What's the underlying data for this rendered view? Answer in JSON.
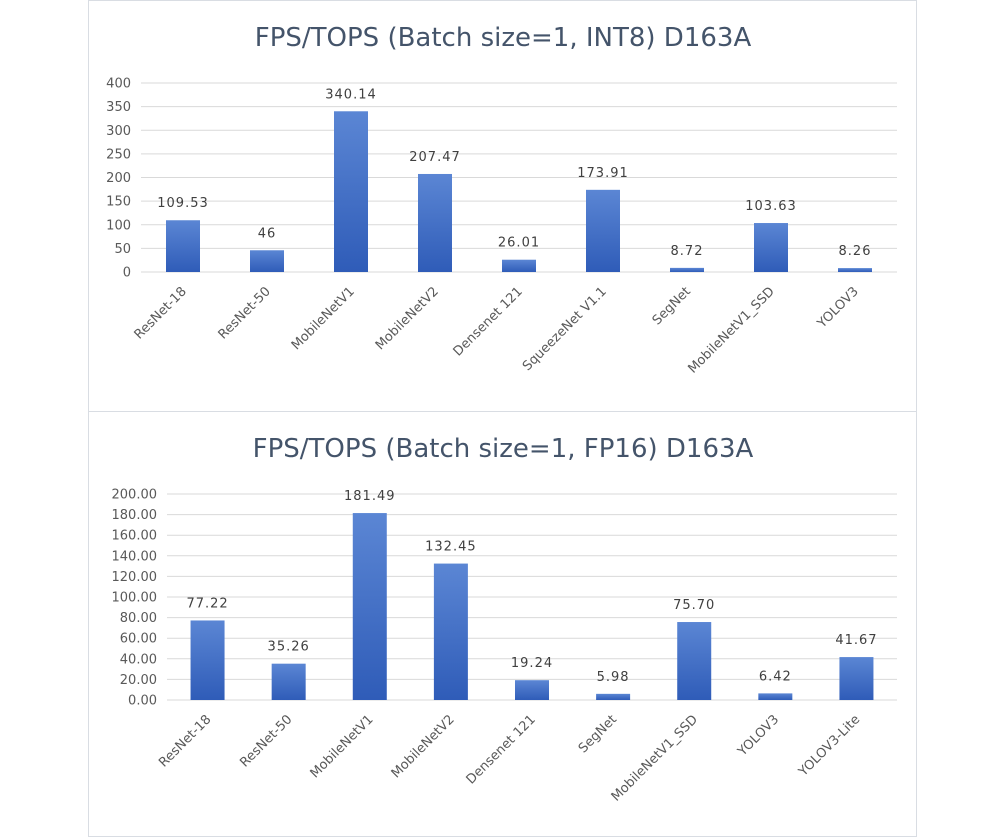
{
  "chart_data": [
    {
      "type": "bar",
      "title": "FPS/TOPS (Batch size=1, INT8)   D163A",
      "categories": [
        "ResNet-18",
        "ResNet-50",
        "MobileNetV1",
        "MobileNetV2",
        "Densenet 121",
        "SqueezeNet V1.1",
        "SegNet",
        "MobileNetV1_SSD",
        "YOLOV3"
      ],
      "values": [
        109.53,
        46,
        340.14,
        207.47,
        26.01,
        173.91,
        8.72,
        103.63,
        8.26
      ],
      "data_labels": [
        "109.53",
        "46",
        "340.14",
        "207.47",
        "26.01",
        "173.91",
        "8.72",
        "103.63",
        "8.26"
      ],
      "ylim": [
        0,
        400
      ],
      "yticks": [
        "0",
        "50",
        "100",
        "150",
        "200",
        "250",
        "300",
        "350",
        "400"
      ],
      "grid": true,
      "xlabel": "",
      "ylabel": "",
      "bar_color": "#4472c4"
    },
    {
      "type": "bar",
      "title": "FPS/TOPS (Batch size=1, FP16)  D163A",
      "categories": [
        "ResNet-18",
        "ResNet-50",
        "MobileNetV1",
        "MobileNetV2",
        "Densenet 121",
        "SegNet",
        "MobileNetV1_SSD",
        "YOLOV3",
        "YOLOV3-Lite"
      ],
      "values": [
        77.22,
        35.26,
        181.49,
        132.45,
        19.24,
        5.98,
        75.7,
        6.42,
        41.67
      ],
      "data_labels": [
        "77.22",
        "35.26",
        "181.49",
        "132.45",
        "19.24",
        "5.98",
        "75.70",
        "6.42",
        "41.67"
      ],
      "ylim": [
        0,
        200
      ],
      "yticks": [
        "0.00",
        "20.00",
        "40.00",
        "60.00",
        "80.00",
        "100.00",
        "120.00",
        "140.00",
        "160.00",
        "180.00",
        "200.00"
      ],
      "grid": true,
      "xlabel": "",
      "ylabel": "",
      "bar_color": "#4472c4"
    }
  ]
}
